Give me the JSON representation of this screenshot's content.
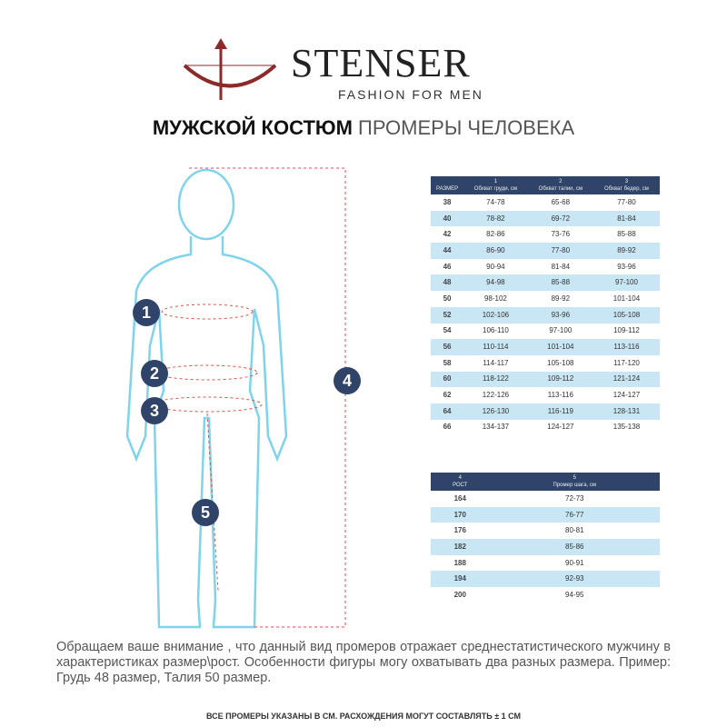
{
  "brand": {
    "name": "STENSER",
    "tagline": "FASHION FOR MEN"
  },
  "title": {
    "bold": "МУЖСКОЙ КОСТЮМ",
    "light": "ПРОМЕРЫ ЧЕЛОВЕКА"
  },
  "markers": [
    "1",
    "2",
    "3",
    "4",
    "5"
  ],
  "size_table": {
    "headers": [
      {
        "num": "",
        "label": "РАЗМЕР"
      },
      {
        "num": "1",
        "label": "Обхват груди, см"
      },
      {
        "num": "2",
        "label": "Обхват талии, см"
      },
      {
        "num": "3",
        "label": "Обхват бедер, см"
      }
    ],
    "rows": [
      [
        "38",
        "74-78",
        "65-68",
        "77-80"
      ],
      [
        "40",
        "78-82",
        "69-72",
        "81-84"
      ],
      [
        "42",
        "82-86",
        "73-76",
        "85-88"
      ],
      [
        "44",
        "86-90",
        "77-80",
        "89-92"
      ],
      [
        "46",
        "90-94",
        "81-84",
        "93-96"
      ],
      [
        "48",
        "94-98",
        "85-88",
        "97-100"
      ],
      [
        "50",
        "98-102",
        "89-92",
        "101-104"
      ],
      [
        "52",
        "102-106",
        "93-96",
        "105-108"
      ],
      [
        "54",
        "106-110",
        "97-100",
        "109-112"
      ],
      [
        "56",
        "110-114",
        "101-104",
        "113-116"
      ],
      [
        "58",
        "114-117",
        "105-108",
        "117-120"
      ],
      [
        "60",
        "118-122",
        "109-112",
        "121-124"
      ],
      [
        "62",
        "122-126",
        "113-116",
        "124-127"
      ],
      [
        "64",
        "126-130",
        "116-119",
        "128-131"
      ],
      [
        "66",
        "134-137",
        "124-127",
        "135-138"
      ]
    ]
  },
  "height_table": {
    "headers": [
      {
        "num": "4",
        "label": "РОСТ"
      },
      {
        "num": "5",
        "label": "Промер шага, см"
      }
    ],
    "rows": [
      [
        "164",
        "72-73"
      ],
      [
        "170",
        "76-77"
      ],
      [
        "176",
        "80-81"
      ],
      [
        "182",
        "85-86"
      ],
      [
        "188",
        "90-91"
      ],
      [
        "194",
        "92-93"
      ],
      [
        "200",
        "94-95"
      ]
    ]
  },
  "note": "Обращаем ваше внимание , что данный вид промеров отражает среднестатистического мужчину в характеристиках размер\\рост. Особенности фигуры могу охватывать два разных размера. Пример: Грудь 48 размер, Талия 50 размер.",
  "footer": "ВСЕ ПРОМЕРЫ УКАЗАНЫ В СМ. РАСХОЖДЕНИЯ МОГУТ СОСТАВЛЯТЬ ± 1 СМ",
  "colors": {
    "navy": "#2f4468",
    "light_blue": "#c9e6f5",
    "outline": "#7fd3ea",
    "logo": "#8b2a2a",
    "dash": "#d9534f"
  }
}
